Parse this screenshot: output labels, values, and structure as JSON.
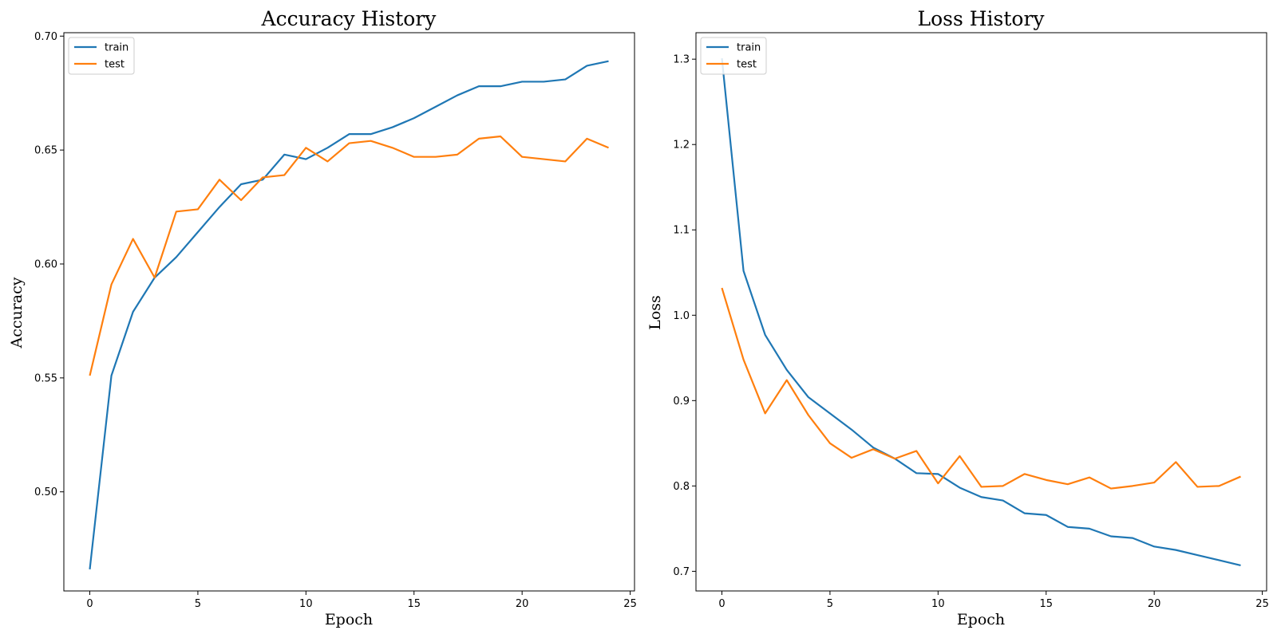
{
  "chart_data": [
    {
      "type": "line",
      "title": "Accuracy History",
      "xlabel": "Epoch",
      "ylabel": "Accuracy",
      "xlim": [
        -1.2,
        25.2
      ],
      "ylim": [
        0.4565,
        0.7015
      ],
      "xticks": [
        0,
        5,
        10,
        15,
        20,
        25
      ],
      "xtick_labels": [
        "0",
        "5",
        "10",
        "15",
        "20",
        "25"
      ],
      "yticks": [
        0.5,
        0.55,
        0.6,
        0.65,
        0.7
      ],
      "ytick_labels": [
        "0.50",
        "0.55",
        "0.60",
        "0.65",
        "0.70"
      ],
      "grid": false,
      "legend_position": "top-left",
      "x": [
        0,
        1,
        2,
        3,
        4,
        5,
        6,
        7,
        8,
        9,
        10,
        11,
        12,
        13,
        14,
        15,
        16,
        17,
        18,
        19,
        20,
        21,
        22,
        23,
        24
      ],
      "series": [
        {
          "name": "train",
          "color": "#1f77b4",
          "values": [
            0.466,
            0.551,
            0.579,
            0.594,
            0.603,
            0.614,
            0.625,
            0.635,
            0.637,
            0.648,
            0.646,
            0.651,
            0.657,
            0.657,
            0.66,
            0.664,
            0.669,
            0.674,
            0.678,
            0.678,
            0.68,
            0.68,
            0.681,
            0.687,
            0.689
          ]
        },
        {
          "name": "test",
          "color": "#ff7f0e",
          "values": [
            0.551,
            0.591,
            0.611,
            0.594,
            0.623,
            0.624,
            0.637,
            0.628,
            0.638,
            0.639,
            0.651,
            0.645,
            0.653,
            0.654,
            0.651,
            0.647,
            0.647,
            0.648,
            0.655,
            0.656,
            0.647,
            0.646,
            0.645,
            0.655,
            0.651
          ]
        }
      ]
    },
    {
      "type": "line",
      "title": "Loss History",
      "xlabel": "Epoch",
      "ylabel": "Loss",
      "xlim": [
        -1.2,
        25.2
      ],
      "ylim": [
        0.677,
        1.331
      ],
      "xticks": [
        0,
        5,
        10,
        15,
        20,
        25
      ],
      "xtick_labels": [
        "0",
        "5",
        "10",
        "15",
        "20",
        "25"
      ],
      "yticks": [
        0.7,
        0.8,
        0.9,
        1.0,
        1.1,
        1.2,
        1.3
      ],
      "ytick_labels": [
        "0.7",
        "0.8",
        "0.9",
        "1.0",
        "1.1",
        "1.2",
        "1.3"
      ],
      "grid": false,
      "legend_position": "top-left",
      "x": [
        0,
        1,
        2,
        3,
        4,
        5,
        6,
        7,
        8,
        9,
        10,
        11,
        12,
        13,
        14,
        15,
        16,
        17,
        18,
        19,
        20,
        21,
        22,
        23,
        24
      ],
      "series": [
        {
          "name": "train",
          "color": "#1f77b4",
          "values": [
            1.301,
            1.052,
            0.977,
            0.936,
            0.904,
            0.885,
            0.866,
            0.845,
            0.832,
            0.815,
            0.814,
            0.798,
            0.787,
            0.783,
            0.768,
            0.766,
            0.752,
            0.75,
            0.741,
            0.739,
            0.729,
            0.725,
            0.719,
            0.713,
            0.707
          ]
        },
        {
          "name": "test",
          "color": "#ff7f0e",
          "values": [
            1.032,
            0.948,
            0.885,
            0.924,
            0.883,
            0.85,
            0.833,
            0.843,
            0.832,
            0.841,
            0.803,
            0.835,
            0.799,
            0.8,
            0.814,
            0.807,
            0.802,
            0.81,
            0.797,
            0.8,
            0.804,
            0.828,
            0.799,
            0.8,
            0.811
          ]
        }
      ]
    }
  ]
}
